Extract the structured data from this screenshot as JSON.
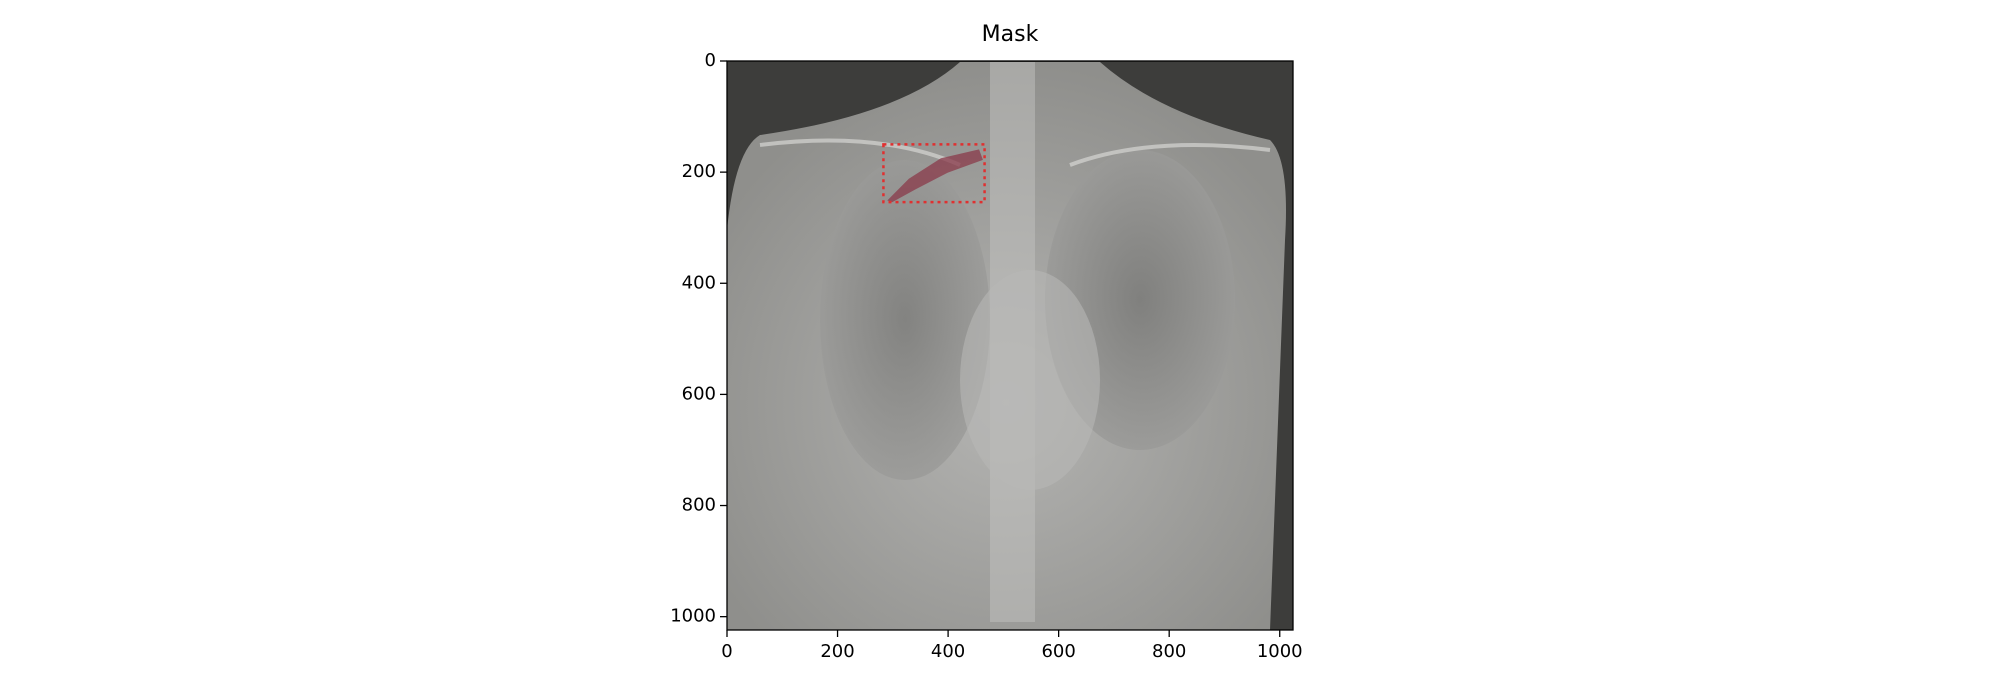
{
  "chart_data": {
    "type": "image",
    "title": "Mask",
    "xlim": [
      0,
      1024
    ],
    "ylim": [
      1024,
      0
    ],
    "xticks": [
      0,
      200,
      400,
      600,
      800,
      1000
    ],
    "yticks": [
      0,
      200,
      400,
      600,
      800,
      1000
    ],
    "box": {
      "x": [
        283,
        466
      ],
      "y": [
        150,
        254
      ],
      "color": "#e03030"
    },
    "mask": {
      "x": [
        290,
        329,
        387,
        456,
        463,
        399,
        341,
        299
      ],
      "y": [
        251,
        212,
        175,
        159,
        178,
        201,
        231,
        254
      ],
      "color": "#8a3a4a"
    }
  }
}
